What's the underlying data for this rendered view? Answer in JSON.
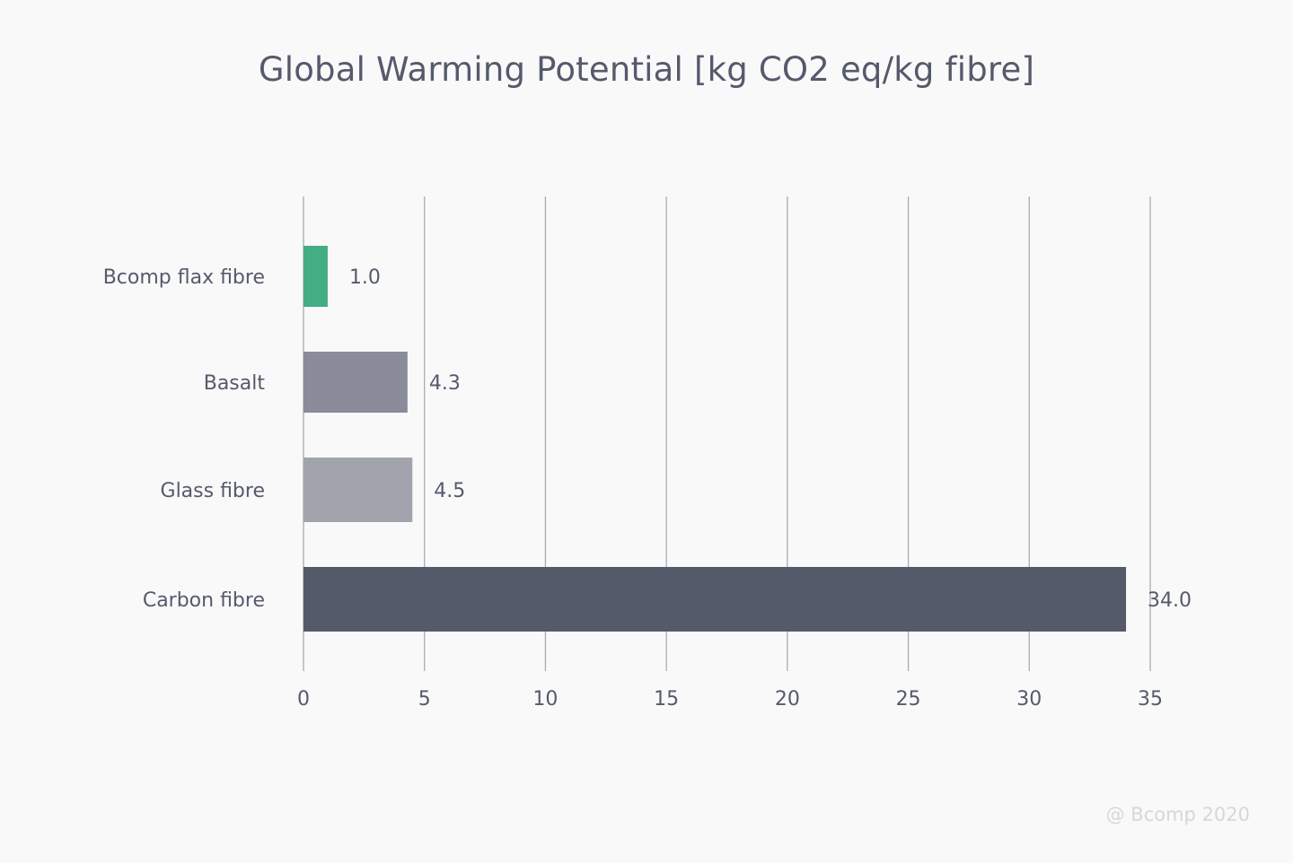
{
  "chart_data": {
    "type": "bar",
    "orientation": "horizontal",
    "title": "Global Warming Potential [kg CO2 eq/kg fibre]",
    "categories": [
      "Bcomp flax fibre",
      "Basalt",
      "Glass fibre",
      "Carbon fibre"
    ],
    "values": [
      1.0,
      4.3,
      4.5,
      34.0
    ],
    "value_labels": [
      "1.0",
      "4.3",
      "4.5",
      "34.0"
    ],
    "bar_colors": [
      "#43ad84",
      "#8a8c99",
      "#a2a4ad",
      "#555a6b"
    ],
    "xlim": [
      0,
      35
    ],
    "x_ticks": [
      0,
      5,
      10,
      15,
      20,
      25,
      30,
      35
    ],
    "x_tick_labels": [
      "0",
      "5",
      "10",
      "15",
      "20",
      "25",
      "30",
      "35"
    ],
    "xlabel": "",
    "ylabel": "",
    "grid": true,
    "legend": false
  },
  "colors": {
    "background": "#f9f9fa",
    "text": "#555a6b",
    "gridline": "#a9abb3",
    "watermark": "#d6d7dc"
  },
  "watermark": "@ Bcomp 2020"
}
